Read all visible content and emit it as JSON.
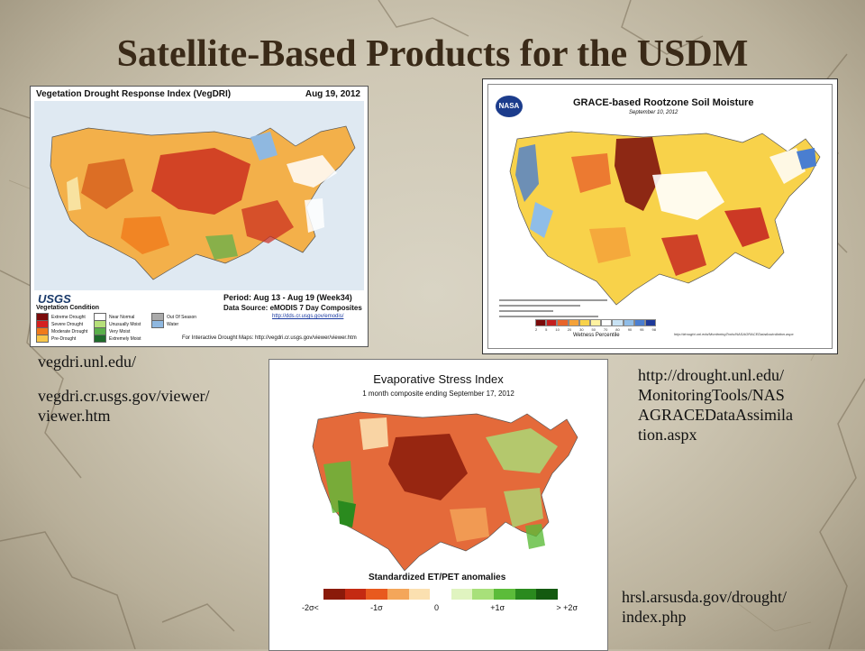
{
  "slide": {
    "title": "Satellite-Based Products for the USDM"
  },
  "vegdri": {
    "title": "Vegetation Drought Response Index (VegDRI)",
    "date": "Aug 19, 2012",
    "period": "Period: Aug 13 - Aug 19 (Week34)",
    "source": "Data Source:  eMODIS 7 Day Composites",
    "source_url": "http://dds.cr.usgs.gov/emodis/",
    "footer": "For Interactive Drought Maps: http://vegdri.cr.usgs.gov/viewer/viewer.htm",
    "agency": "USGS",
    "legend_title": "Vegetation Condition",
    "legend": [
      {
        "label": "Extreme Drought",
        "color": "#7a0a0a"
      },
      {
        "label": "Severe Drought",
        "color": "#d42020"
      },
      {
        "label": "Moderate Drought",
        "color": "#f07a1a"
      },
      {
        "label": "Pre-Drought",
        "color": "#f8c64a"
      },
      {
        "label": "Near Normal",
        "color": "#ffffff"
      },
      {
        "label": "Unusually Moist",
        "color": "#b7e07a"
      },
      {
        "label": "Very Moist",
        "color": "#5ab04a"
      },
      {
        "label": "Extremely Moist",
        "color": "#1e6a2a"
      },
      {
        "label": "Out Of Season",
        "color": "#aaaaaa"
      },
      {
        "label": "Water",
        "color": "#8fb8e0"
      }
    ]
  },
  "grace": {
    "title": "GRACE-based Rootzone Soil Moisture",
    "date": "September 10, 2012",
    "logo": "NASA",
    "scale_label": "Wetness Percentile",
    "scale_ticks": [
      "2",
      "5",
      "10",
      "20",
      "30",
      "50",
      "70",
      "80",
      "90",
      "95",
      "98"
    ],
    "scale_colors": [
      "#7a0a0a",
      "#c41e1e",
      "#e8642a",
      "#f4a23a",
      "#f8d24a",
      "#fff2a0",
      "#ffffff",
      "#c8e2f4",
      "#8fbde8",
      "#4a7ed0",
      "#1e3a9a"
    ],
    "url": "http://drought.unl.edu/MonitoringTools/NASAGRACEDataAssimilation.aspx"
  },
  "esi": {
    "title": "Evaporative Stress Index",
    "subtitle": "1 month composite ending September 17, 2012",
    "scale_label": "Standardized ET/PET anomalies",
    "scale_ticks": [
      "-2σ<",
      "-1σ",
      "0",
      "+1σ",
      "> +2σ"
    ],
    "scale_colors": [
      "#8a1a0a",
      "#c42a12",
      "#e85a1e",
      "#f4a65a",
      "#fbe0b0",
      "#ffffff",
      "#e0f4c0",
      "#a8e07a",
      "#5cbc3a",
      "#2a8a1e",
      "#145a10"
    ]
  },
  "links": {
    "vegdri_1": "vegdri.unl.edu/",
    "vegdri_2": "vegdri.cr.usgs.gov/viewer/ viewer.htm",
    "grace": "http://drought.unl.edu/ MonitoringTools/NAS AGRACEDataAssimila tion.aspx",
    "esi": "hrsl.arsusda.gov/drought/ index.php"
  }
}
